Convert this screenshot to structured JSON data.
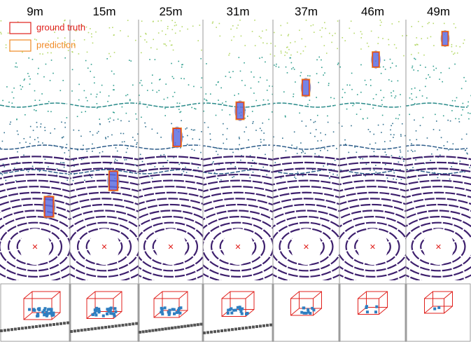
{
  "columns": [
    {
      "label": "9m"
    },
    {
      "label": "15m"
    },
    {
      "label": "25m"
    },
    {
      "label": "31m"
    },
    {
      "label": "37m"
    },
    {
      "label": "46m"
    },
    {
      "label": "49m"
    }
  ],
  "legend": [
    {
      "label": "ground truth",
      "color": "#e0201c"
    },
    {
      "label": "prediction",
      "color": "#f08a24"
    }
  ]
}
